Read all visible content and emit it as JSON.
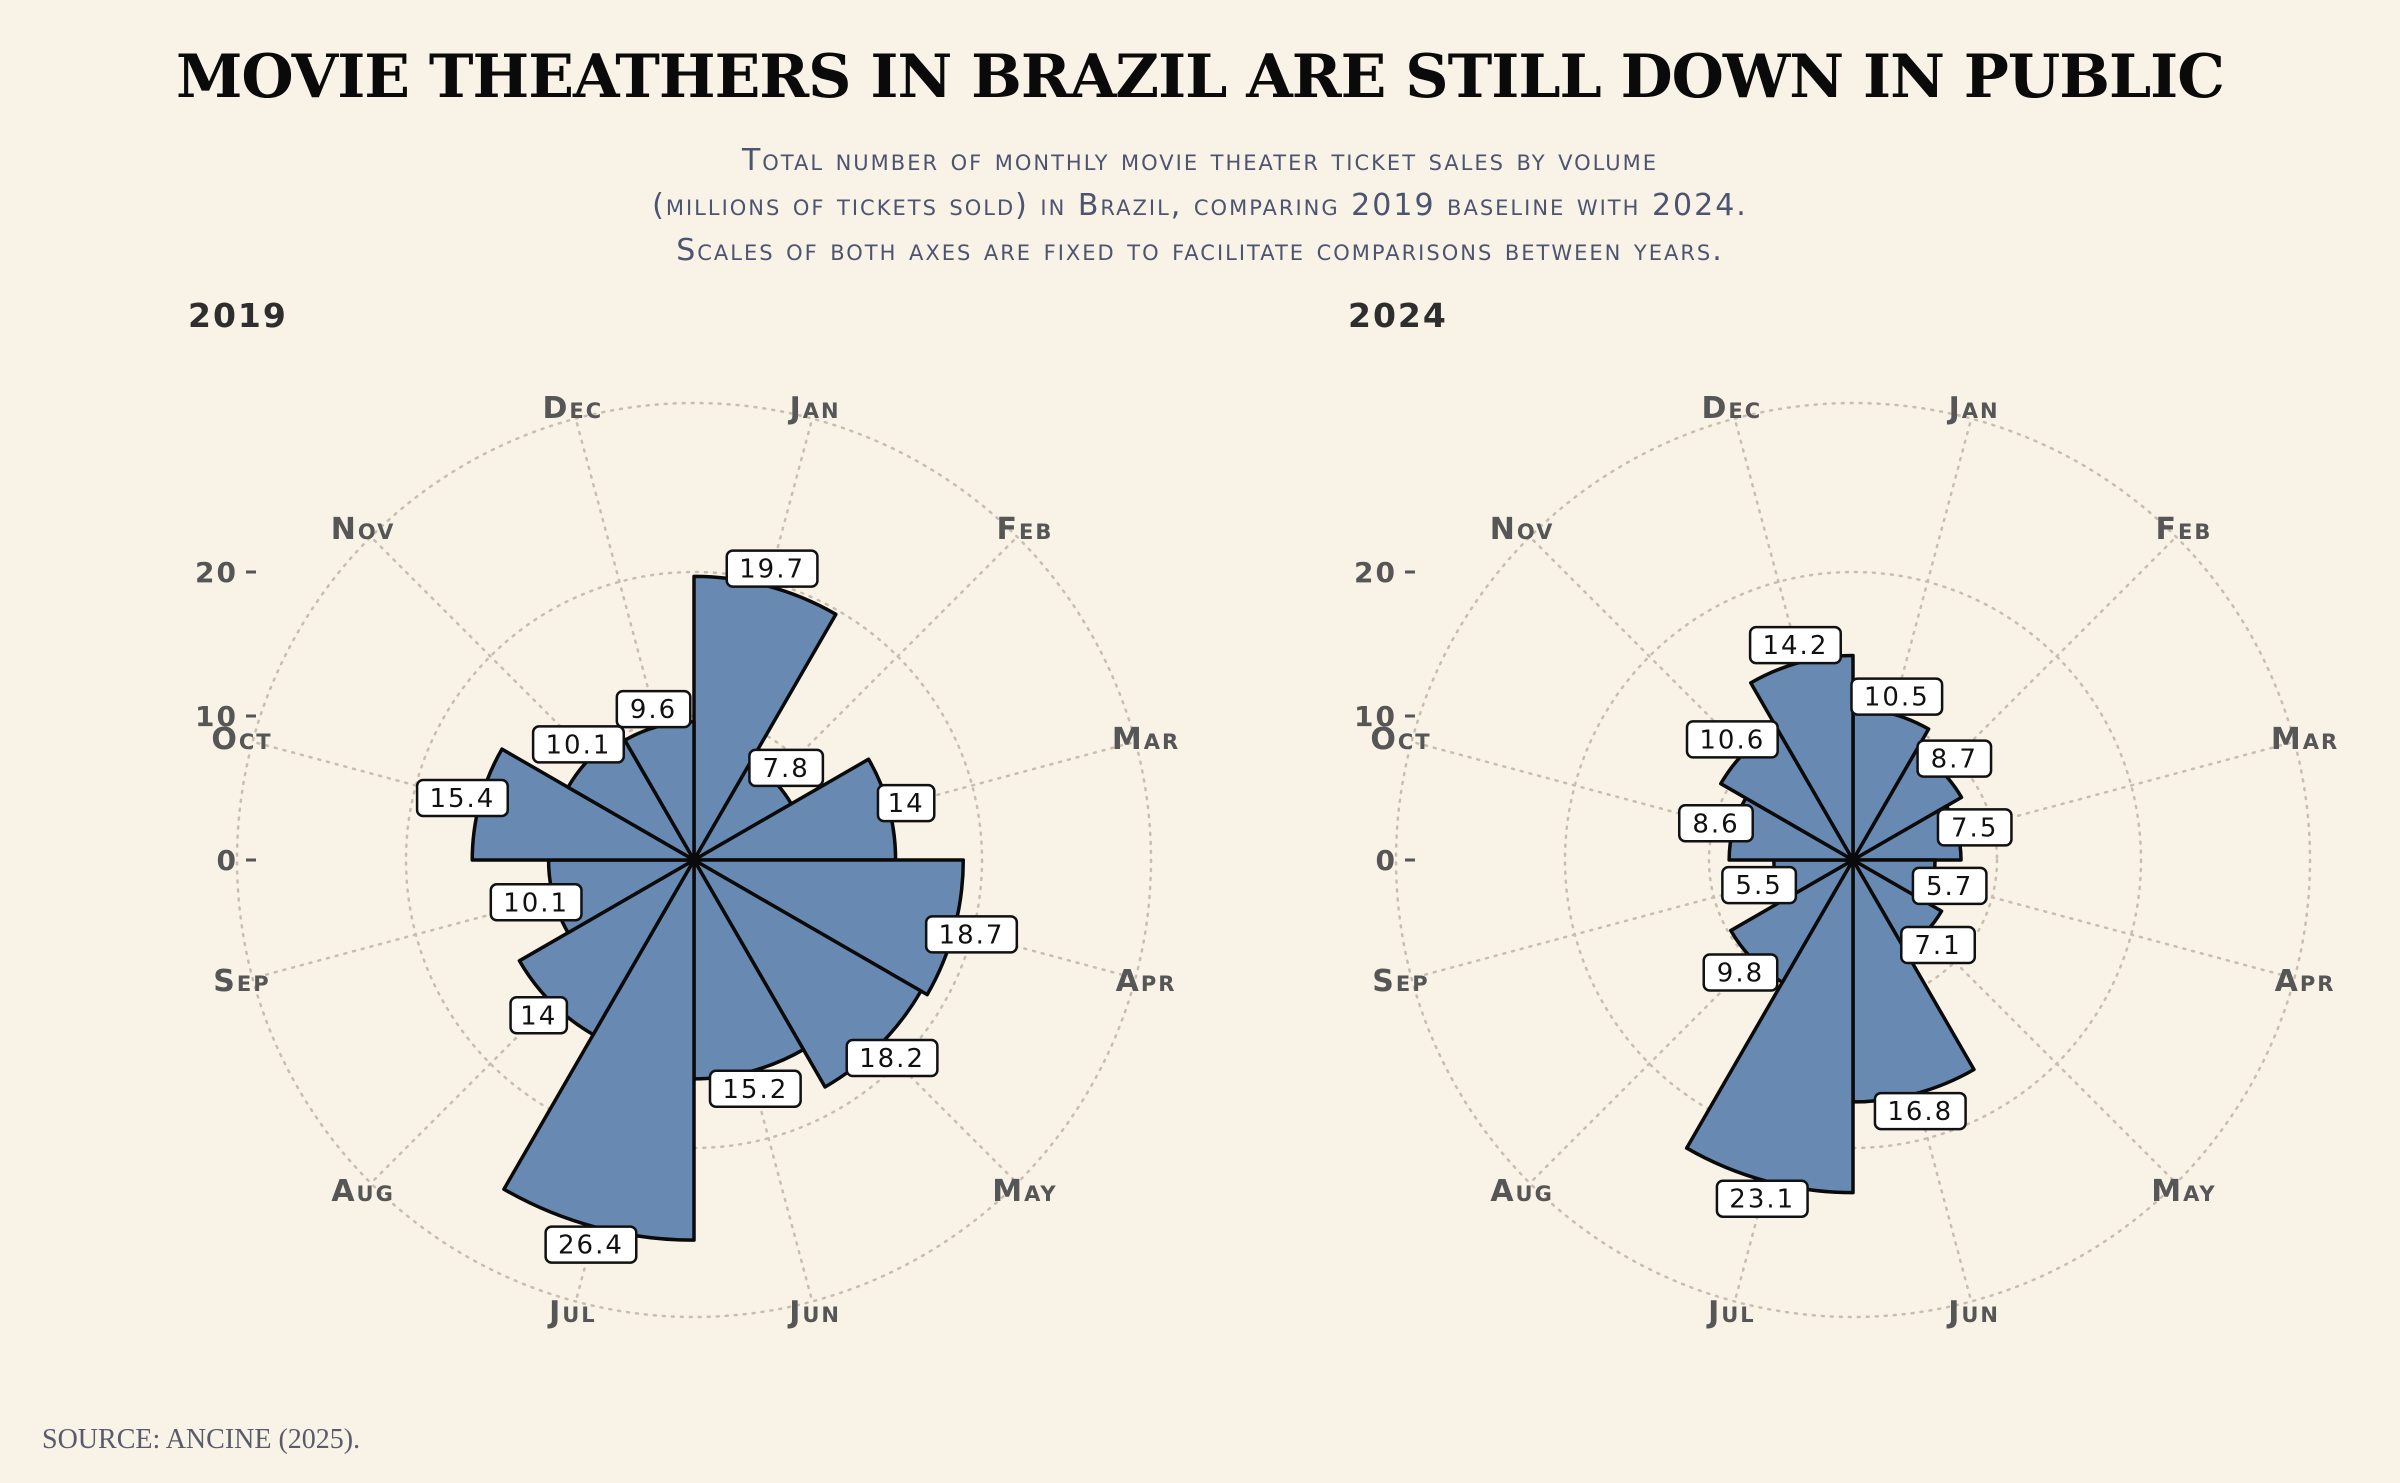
{
  "header": {
    "title": "MOVIE THEATHERS IN BRAZIL ARE STILL DOWN IN PUBLIC",
    "subtitle_lines": [
      "Total number of monthly movie theater ticket sales by volume",
      "(millions of tickets sold) in Brazil, comparing 2019 baseline with 2024.",
      "Scales of both axes are fixed to facilitate comparisons between years."
    ]
  },
  "footer": {
    "source": "SOURCE: ANCINE (2025)."
  },
  "colors": {
    "bar_fill": "#6889b1",
    "bar_stroke": "#0a0a0a",
    "background": "#f8f2e7",
    "grid": "#c9bdb0"
  },
  "chart_data": [
    {
      "type": "polar-bar",
      "title": "2019",
      "categories": [
        "Jan",
        "Feb",
        "Mar",
        "Apr",
        "May",
        "Jun",
        "Jul",
        "Aug",
        "Sep",
        "Oct",
        "Nov",
        "Dec"
      ],
      "values": [
        19.7,
        7.8,
        14,
        18.7,
        18.2,
        15.2,
        26.4,
        14,
        10.1,
        15.4,
        10.1,
        9.6
      ],
      "value_labels": [
        "19.7",
        "7.8",
        "14",
        "18.7",
        "18.2",
        "15.2",
        "26.4",
        "14",
        "10.1",
        "15.4",
        "10.1",
        "9.6"
      ],
      "radial_ticks": [
        "0",
        "10",
        "20"
      ],
      "radial_range": [
        0,
        30
      ],
      "grid": true
    },
    {
      "type": "polar-bar",
      "title": "2024",
      "categories": [
        "Jan",
        "Feb",
        "Mar",
        "Apr",
        "May",
        "Jun",
        "Jul",
        "Aug",
        "Sep",
        "Oct",
        "Nov",
        "Dec"
      ],
      "values": [
        10.5,
        8.7,
        7.5,
        5.7,
        7.1,
        16.8,
        23.1,
        9.8,
        5.5,
        8.6,
        10.6,
        14.2
      ],
      "value_labels": [
        "10.5",
        "8.7",
        "7.5",
        "5.7",
        "7.1",
        "16.8",
        "23.1",
        "9.8",
        "5.5",
        "8.6",
        "10.6",
        "14.2"
      ],
      "radial_ticks": [
        "0",
        "10",
        "20"
      ],
      "radial_range": [
        0,
        30
      ],
      "grid": true
    }
  ]
}
